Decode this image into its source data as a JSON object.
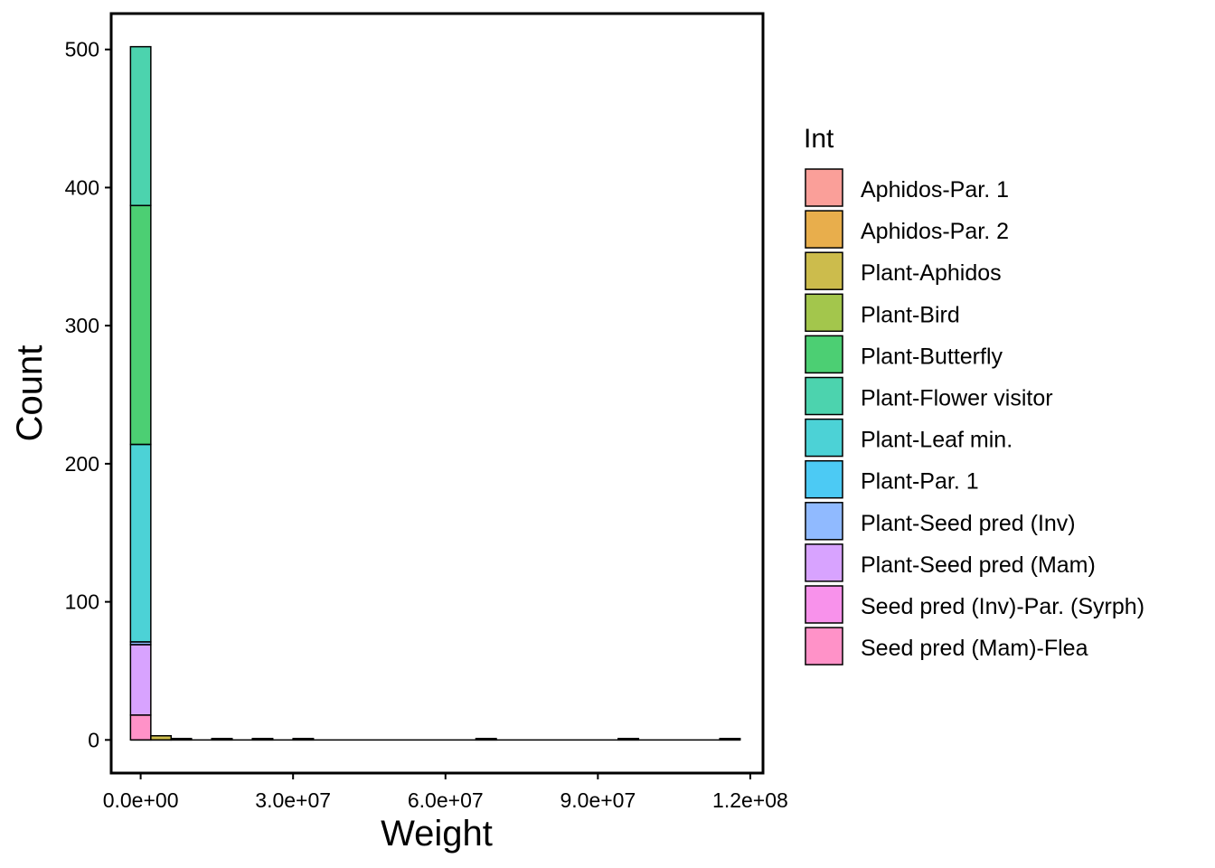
{
  "chart_data": {
    "type": "bar",
    "stacked": true,
    "title": "",
    "xlabel": "Weight",
    "ylabel": "Count",
    "xlim": [
      -5800000,
      122500000
    ],
    "ylim": [
      -24,
      526
    ],
    "x_ticks": [
      {
        "value": 0,
        "label": "0.0e+00"
      },
      {
        "value": 30000000,
        "label": "3.0e+07"
      },
      {
        "value": 60000000,
        "label": "6.0e+07"
      },
      {
        "value": 90000000,
        "label": "9.0e+07"
      },
      {
        "value": 120000000,
        "label": "1.2e+08"
      }
    ],
    "y_ticks": [
      {
        "value": 0,
        "label": "0"
      },
      {
        "value": 100,
        "label": "100"
      },
      {
        "value": 200,
        "label": "200"
      },
      {
        "value": 300,
        "label": "300"
      },
      {
        "value": 400,
        "label": "400"
      },
      {
        "value": 500,
        "label": "500"
      }
    ],
    "grid": false,
    "legend_position": "right",
    "legend_title": "Int",
    "legend": [
      {
        "name": "Aphidos-Par. 1",
        "color": "#F8766D"
      },
      {
        "name": "Aphidos-Par. 2",
        "color": "#DE8C00"
      },
      {
        "name": "Plant-Aphidos",
        "color": "#B79F00"
      },
      {
        "name": "Plant-Bird",
        "color": "#7CAE00"
      },
      {
        "name": "Plant-Butterfly",
        "color": "#00BA38"
      },
      {
        "name": "Plant-Flower visitor",
        "color": "#00C08B"
      },
      {
        "name": "Plant-Leaf min.",
        "color": "#00BFC4"
      },
      {
        "name": "Plant-Par. 1",
        "color": "#00B4F0"
      },
      {
        "name": "Plant-Seed pred (Inv)",
        "color": "#619CFF"
      },
      {
        "name": "Plant-Seed pred (Mam)",
        "color": "#C77CFF"
      },
      {
        "name": "Seed pred (Inv)-Par. (Syrph)",
        "color": "#F564E3"
      },
      {
        "name": "Seed pred (Mam)-Flea",
        "color": "#FF64B0"
      }
    ],
    "fill_opacity": 0.7,
    "bin_width": 4000000,
    "bins": [
      {
        "x_start": -2000000,
        "x_end": 2000000,
        "segments": [
          {
            "series": "Seed pred (Mam)-Flea",
            "value": 18
          },
          {
            "series": "Plant-Seed pred (Mam)",
            "value": 51
          },
          {
            "series": "Plant-Seed pred (Inv)",
            "value": 2
          },
          {
            "series": "Plant-Leaf min.",
            "value": 143
          },
          {
            "series": "Plant-Butterfly",
            "value": 173
          },
          {
            "series": "Plant-Flower visitor",
            "value": 115
          }
        ]
      },
      {
        "x_start": 2000000,
        "x_end": 6000000,
        "segments": [
          {
            "series": "Plant-Aphidos",
            "value": 3
          }
        ]
      },
      {
        "x_start": 6000000,
        "x_end": 10000000,
        "segments": [
          {
            "series": "Plant-Aphidos",
            "value": 1
          }
        ]
      },
      {
        "x_start": 14000000,
        "x_end": 18000000,
        "segments": [
          {
            "series": "Plant-Aphidos",
            "value": 1
          }
        ]
      },
      {
        "x_start": 22000000,
        "x_end": 26000000,
        "segments": [
          {
            "series": "Plant-Aphidos",
            "value": 1
          }
        ]
      },
      {
        "x_start": 30000000,
        "x_end": 34000000,
        "segments": [
          {
            "series": "Plant-Aphidos",
            "value": 1
          }
        ]
      },
      {
        "x_start": 66000000,
        "x_end": 70000000,
        "segments": [
          {
            "series": "Plant-Aphidos",
            "value": 1
          }
        ]
      },
      {
        "x_start": 94000000,
        "x_end": 98000000,
        "segments": [
          {
            "series": "Plant-Aphidos",
            "value": 1
          }
        ]
      },
      {
        "x_start": 114000000,
        "x_end": 118000000,
        "segments": [
          {
            "series": "Plant-Aphidos",
            "value": 1
          }
        ]
      }
    ],
    "baseline_x_range": [
      -2000000,
      118000000
    ]
  }
}
